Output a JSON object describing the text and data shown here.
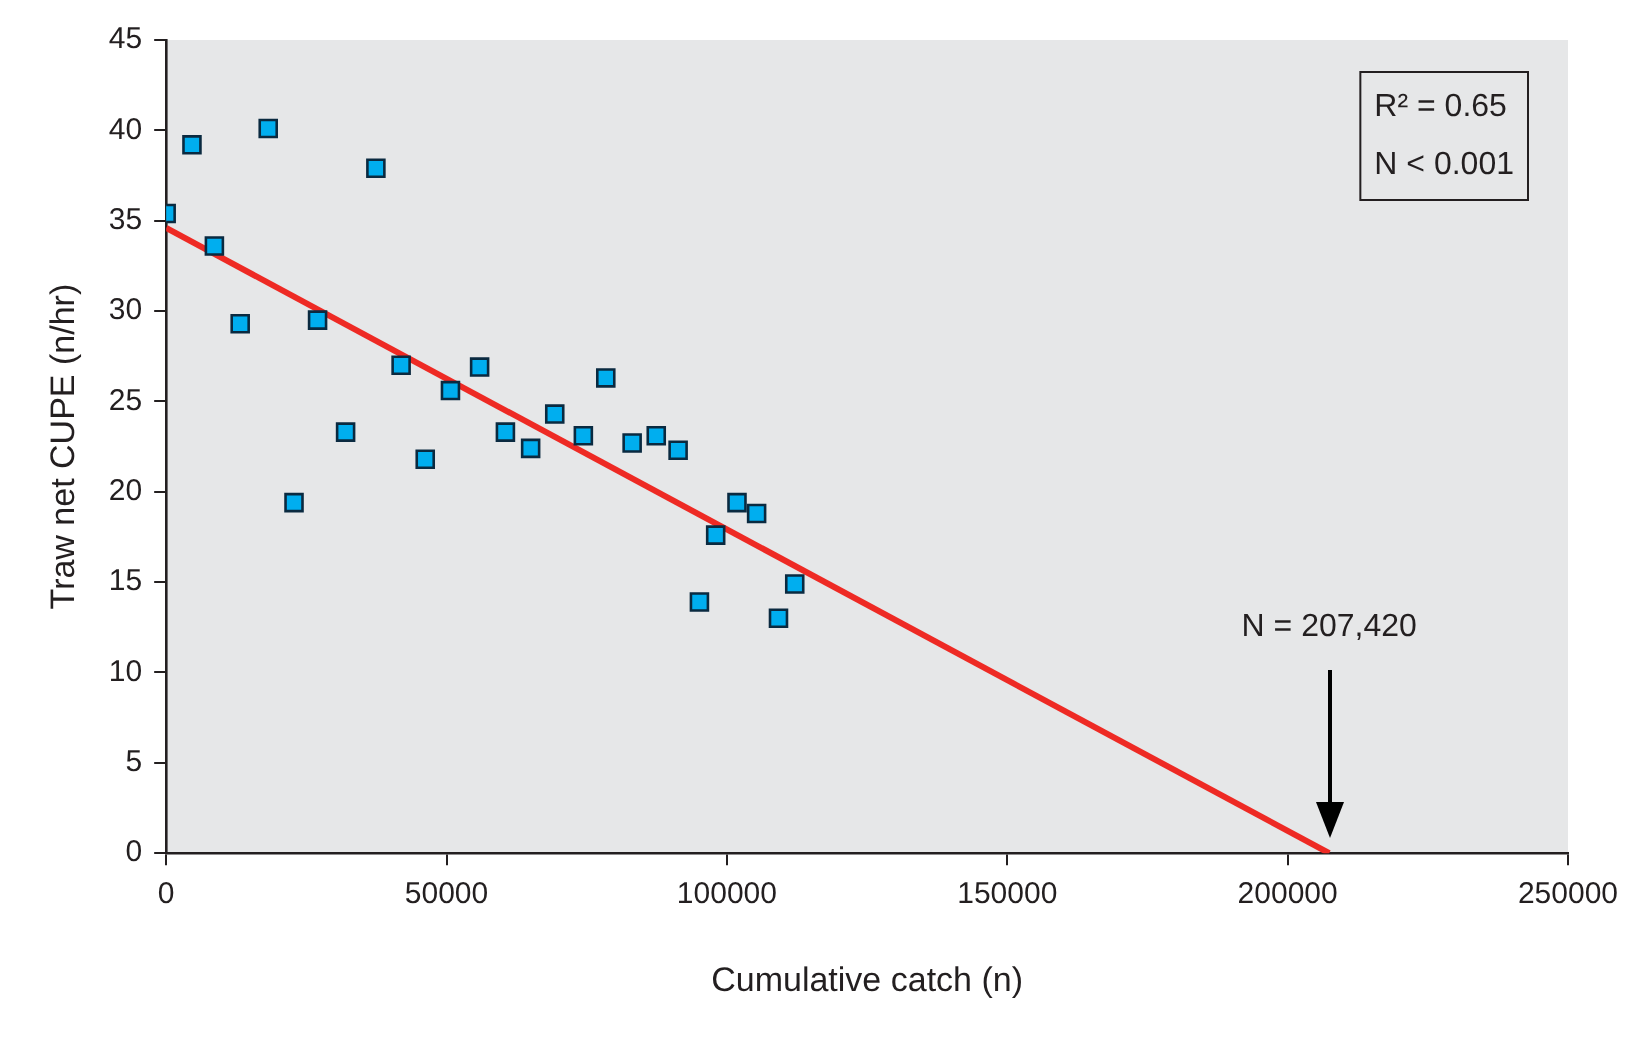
{
  "chart_data": {
    "type": "scatter",
    "xlabel": "Cumulative catch (n)",
    "ylabel": "Traw net CUPE (n/hr)",
    "xlim": [
      0,
      250000
    ],
    "xticks": [
      0,
      50000,
      100000,
      150000,
      200000,
      250000
    ],
    "ylim": [
      0,
      45
    ],
    "yticks": [
      0,
      5,
      10,
      15,
      20,
      25,
      30,
      35,
      40,
      45
    ],
    "grid": false,
    "legend": false,
    "series": [
      {
        "marker": "square",
        "color": "#00aeef",
        "x": [
          0,
          4600,
          8600,
          13200,
          18200,
          22800,
          27000,
          32000,
          37400,
          41900,
          46200,
          50700,
          55900,
          60500,
          65000,
          69300,
          74400,
          78400,
          83100,
          87400,
          91300,
          95100,
          98000,
          101800,
          105300,
          109200,
          112100
        ],
        "values": [
          35.4,
          39.2,
          33.6,
          29.3,
          40.1,
          19.4,
          29.5,
          23.3,
          37.9,
          27.0,
          21.8,
          25.6,
          26.9,
          23.3,
          22.4,
          24.3,
          23.1,
          26.3,
          22.7,
          23.1,
          22.3,
          13.9,
          17.6,
          19.4,
          18.8,
          13.0,
          14.9
        ]
      },
      {
        "type": "line",
        "color": "#ee2a24",
        "x": [
          0,
          207420
        ],
        "values": [
          34.6,
          0
        ]
      }
    ],
    "annotations": [
      "R² = 0.65",
      "N < 0.001",
      "N = 207,420"
    ]
  }
}
